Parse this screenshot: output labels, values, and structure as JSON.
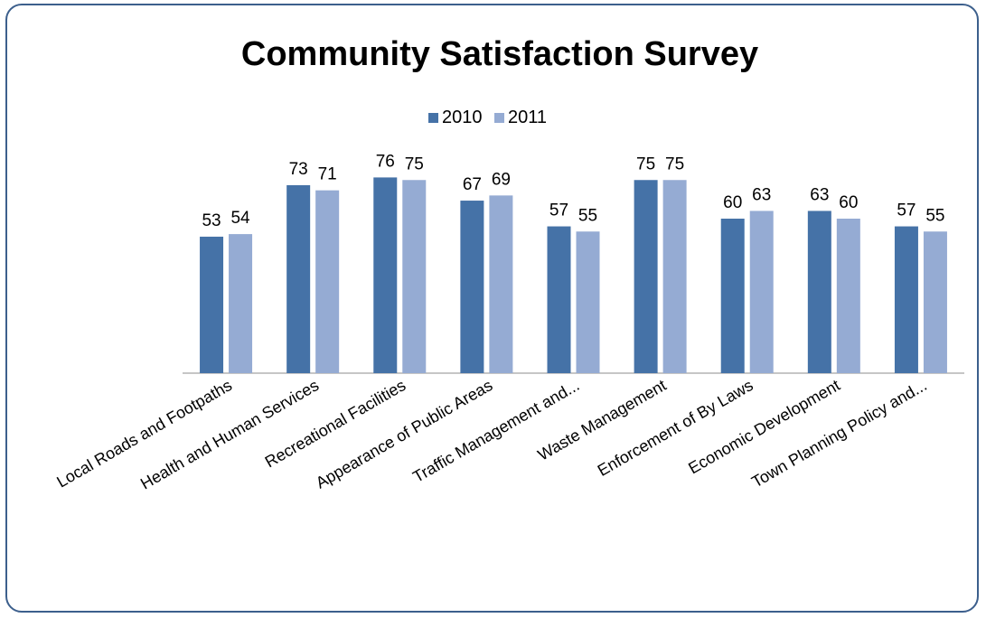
{
  "chart_data": {
    "type": "bar",
    "title": "Community Satisfaction Survey",
    "xlabel": "",
    "ylabel": "",
    "categories": [
      "Local Roads and Footpaths",
      "Health and Human Services",
      "Recreational Facilities",
      "Appearance of Public Areas",
      "Traffic Management and...",
      "Waste Management",
      "Enforcement of By Laws",
      "Economic Development",
      "Town Planning Policy and..."
    ],
    "series": [
      {
        "name": "2010",
        "color": "#4572a7",
        "values": [
          53,
          73,
          76,
          67,
          57,
          75,
          60,
          63,
          57
        ]
      },
      {
        "name": "2011",
        "color": "#95abd3",
        "values": [
          54,
          71,
          75,
          69,
          55,
          75,
          63,
          60,
          55
        ]
      }
    ],
    "ylim": [
      0,
      80
    ],
    "grid": false,
    "legend_position": "top"
  }
}
